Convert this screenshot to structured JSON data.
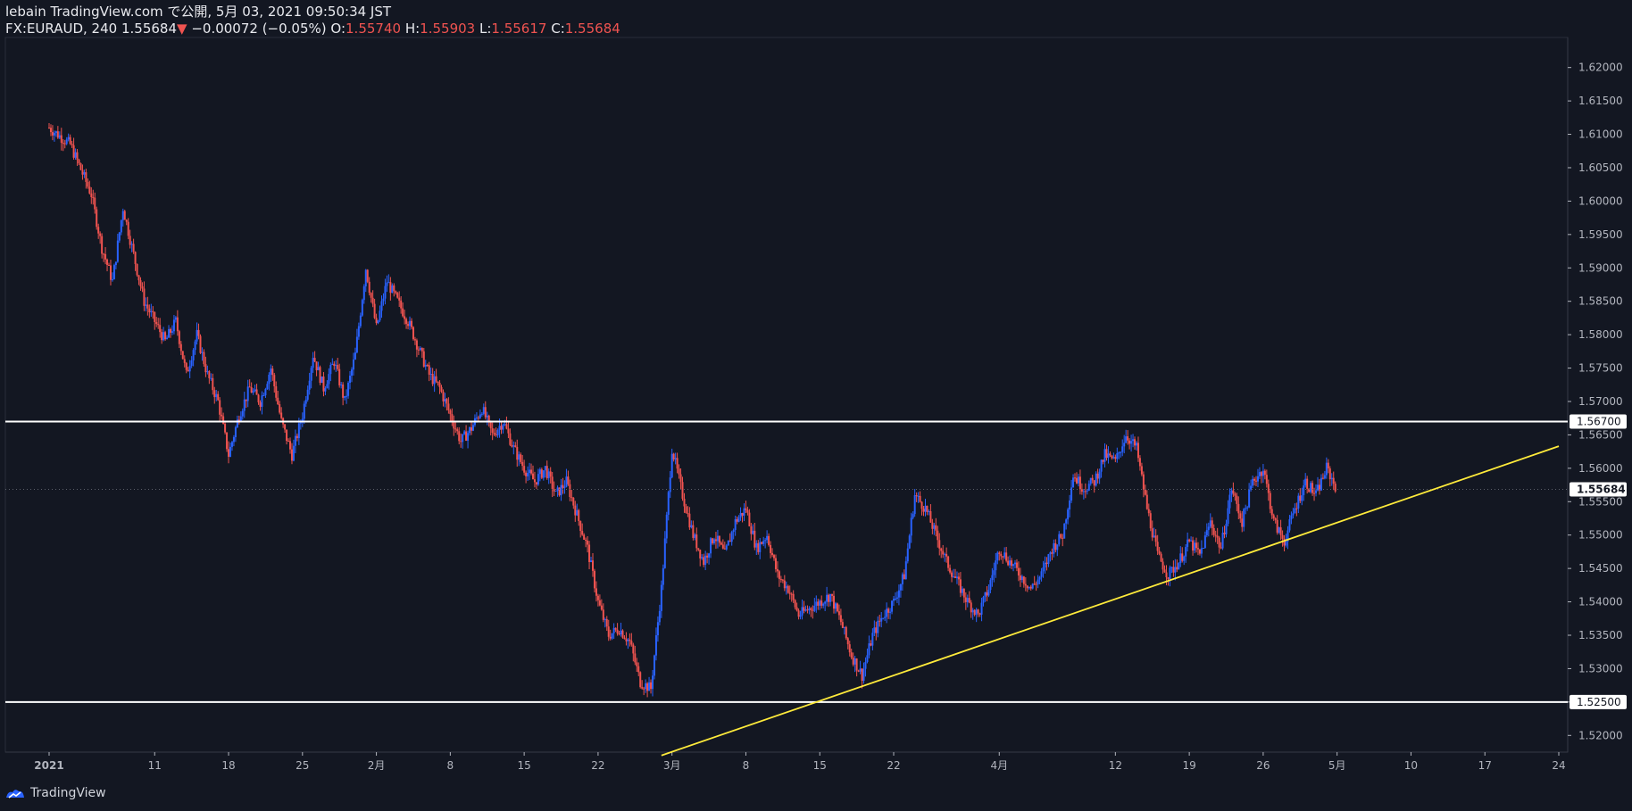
{
  "header": {
    "publisher_line": "lebain TradingView.com で公開, 5月 03, 2021 09:50:34 JST",
    "symbol": "FX:EURAUD, 240",
    "last": "1.55684",
    "change": "−0.00072 (−0.05%)",
    "o_label": "O:",
    "o_value": "1.55740",
    "h_label": "H:",
    "h_value": "1.55903",
    "l_label": "L:",
    "l_value": "1.55617",
    "c_label": "C:",
    "c_value": "1.55684"
  },
  "footer": {
    "brand": "TradingView"
  },
  "colors": {
    "background": "#131722",
    "up": "#2962ff",
    "down": "#ef5350",
    "horizontal_line": "#ffffff",
    "trendline": "#ffeb3b",
    "axis_text": "#b2b5be"
  },
  "chart_data": {
    "type": "candlestick",
    "symbol": "FX:EURAUD",
    "timeframe": "240",
    "ylim": [
      1.5175,
      1.6245
    ],
    "y_ticks": [
      "1.52000",
      "1.52500",
      "1.53000",
      "1.53500",
      "1.54000",
      "1.54500",
      "1.55000",
      "1.55500",
      "1.56000",
      "1.56500",
      "1.57000",
      "1.57500",
      "1.58000",
      "1.58500",
      "1.59000",
      "1.59500",
      "1.60000",
      "1.60500",
      "1.61000",
      "1.61500",
      "1.62000"
    ],
    "x_ticks": [
      {
        "label": "2021",
        "date": "2021-01-01"
      },
      {
        "label": "11",
        "date": "2021-01-11"
      },
      {
        "label": "18",
        "date": "2021-01-18"
      },
      {
        "label": "25",
        "date": "2021-01-25"
      },
      {
        "label": "2月",
        "date": "2021-02-01"
      },
      {
        "label": "8",
        "date": "2021-02-08"
      },
      {
        "label": "15",
        "date": "2021-02-15"
      },
      {
        "label": "22",
        "date": "2021-02-22"
      },
      {
        "label": "3月",
        "date": "2021-03-01"
      },
      {
        "label": "8",
        "date": "2021-03-08"
      },
      {
        "label": "15",
        "date": "2021-03-15"
      },
      {
        "label": "22",
        "date": "2021-03-22"
      },
      {
        "label": "4月",
        "date": "2021-04-01"
      },
      {
        "label": "12",
        "date": "2021-04-12"
      },
      {
        "label": "19",
        "date": "2021-04-19"
      },
      {
        "label": "26",
        "date": "2021-04-26"
      },
      {
        "label": "5月",
        "date": "2021-05-03"
      },
      {
        "label": "10",
        "date": "2021-05-10"
      },
      {
        "label": "17",
        "date": "2021-05-17"
      },
      {
        "label": "24",
        "date": "2021-05-24"
      }
    ],
    "horizontal_lines": [
      {
        "price": 1.567,
        "label": "1.56700"
      },
      {
        "price": 1.525,
        "label": "1.52500"
      }
    ],
    "last_price": {
      "price": 1.55684,
      "label": "1.55684"
    },
    "trendline": {
      "start": {
        "date": "2021-02-28",
        "price": 1.517
      },
      "end": {
        "date": "2021-05-24",
        "price": 1.5633
      }
    },
    "close_path": [
      [
        "2021-01-01",
        1.611
      ],
      [
        "2021-01-03",
        1.6085
      ],
      [
        "2021-01-05",
        1.601
      ],
      [
        "2021-01-06",
        1.593
      ],
      [
        "2021-01-07",
        1.588
      ],
      [
        "2021-01-08",
        1.599
      ],
      [
        "2021-01-09",
        1.592
      ],
      [
        "2021-01-10",
        1.585
      ],
      [
        "2021-01-12",
        1.579
      ],
      [
        "2021-01-13",
        1.582
      ],
      [
        "2021-01-14",
        1.574
      ],
      [
        "2021-01-15",
        1.58
      ],
      [
        "2021-01-16",
        1.574
      ],
      [
        "2021-01-17",
        1.57
      ],
      [
        "2021-01-18",
        1.562
      ],
      [
        "2021-01-19",
        1.568
      ],
      [
        "2021-01-20",
        1.572
      ],
      [
        "2021-01-21",
        1.57
      ],
      [
        "2021-01-22",
        1.575
      ],
      [
        "2021-01-23",
        1.567
      ],
      [
        "2021-01-24",
        1.562
      ],
      [
        "2021-01-25",
        1.568
      ],
      [
        "2021-01-26",
        1.577
      ],
      [
        "2021-01-27",
        1.572
      ],
      [
        "2021-01-28",
        1.576
      ],
      [
        "2021-01-29",
        1.57
      ],
      [
        "2021-01-30",
        1.577
      ],
      [
        "2021-01-31",
        1.59
      ],
      [
        "2021-02-01",
        1.581
      ],
      [
        "2021-02-02",
        1.588
      ],
      [
        "2021-02-03",
        1.585
      ],
      [
        "2021-02-04",
        1.582
      ],
      [
        "2021-02-05",
        1.578
      ],
      [
        "2021-02-06",
        1.574
      ],
      [
        "2021-02-07",
        1.572
      ],
      [
        "2021-02-08",
        1.568
      ],
      [
        "2021-02-09",
        1.564
      ],
      [
        "2021-02-10",
        1.566
      ],
      [
        "2021-02-11",
        1.569
      ],
      [
        "2021-02-12",
        1.565
      ],
      [
        "2021-02-13",
        1.567
      ],
      [
        "2021-02-14",
        1.563
      ],
      [
        "2021-02-15",
        1.56
      ],
      [
        "2021-02-16",
        1.558
      ],
      [
        "2021-02-17",
        1.56
      ],
      [
        "2021-02-18",
        1.556
      ],
      [
        "2021-02-19",
        1.558
      ],
      [
        "2021-02-20",
        1.553
      ],
      [
        "2021-02-21",
        1.548
      ],
      [
        "2021-02-22",
        1.54
      ],
      [
        "2021-02-23",
        1.535
      ],
      [
        "2021-02-24",
        1.536
      ],
      [
        "2021-02-25",
        1.534
      ],
      [
        "2021-02-26",
        1.528
      ],
      [
        "2021-02-27",
        1.527
      ],
      [
        "2021-02-28",
        1.542
      ],
      [
        "2021-03-01",
        1.563
      ],
      [
        "2021-03-02",
        1.556
      ],
      [
        "2021-03-03",
        1.55
      ],
      [
        "2021-03-04",
        1.546
      ],
      [
        "2021-03-05",
        1.55
      ],
      [
        "2021-03-06",
        1.547
      ],
      [
        "2021-03-07",
        1.552
      ],
      [
        "2021-03-08",
        1.554
      ],
      [
        "2021-03-09",
        1.548
      ],
      [
        "2021-03-10",
        1.55
      ],
      [
        "2021-03-11",
        1.544
      ],
      [
        "2021-03-12",
        1.542
      ],
      [
        "2021-03-13",
        1.538
      ],
      [
        "2021-03-14",
        1.539
      ],
      [
        "2021-03-15",
        1.54
      ],
      [
        "2021-03-16",
        1.541
      ],
      [
        "2021-03-17",
        1.537
      ],
      [
        "2021-03-18",
        1.532
      ],
      [
        "2021-03-19",
        1.529
      ],
      [
        "2021-03-20",
        1.535
      ],
      [
        "2021-03-21",
        1.538
      ],
      [
        "2021-03-22",
        1.54
      ],
      [
        "2021-03-23",
        1.544
      ],
      [
        "2021-03-24",
        1.556
      ],
      [
        "2021-03-25",
        1.554
      ],
      [
        "2021-03-26",
        1.55
      ],
      [
        "2021-03-27",
        1.546
      ],
      [
        "2021-03-28",
        1.543
      ],
      [
        "2021-03-29",
        1.54
      ],
      [
        "2021-03-30",
        1.538
      ],
      [
        "2021-03-31",
        1.542
      ],
      [
        "2021-04-01",
        1.548
      ],
      [
        "2021-04-02",
        1.546
      ],
      [
        "2021-04-03",
        1.544
      ],
      [
        "2021-04-04",
        1.542
      ],
      [
        "2021-04-05",
        1.544
      ],
      [
        "2021-04-06",
        1.548
      ],
      [
        "2021-04-07",
        1.55
      ],
      [
        "2021-04-08",
        1.559
      ],
      [
        "2021-04-09",
        1.557
      ],
      [
        "2021-04-10",
        1.558
      ],
      [
        "2021-04-11",
        1.562
      ],
      [
        "2021-04-12",
        1.561
      ],
      [
        "2021-04-13",
        1.565
      ],
      [
        "2021-04-14",
        1.563
      ],
      [
        "2021-04-15",
        1.554
      ],
      [
        "2021-04-16",
        1.547
      ],
      [
        "2021-04-17",
        1.544
      ],
      [
        "2021-04-18",
        1.546
      ],
      [
        "2021-04-19",
        1.549
      ],
      [
        "2021-04-20",
        1.547
      ],
      [
        "2021-04-21",
        1.552
      ],
      [
        "2021-04-22",
        1.548
      ],
      [
        "2021-04-23",
        1.557
      ],
      [
        "2021-04-24",
        1.552
      ],
      [
        "2021-04-25",
        1.558
      ],
      [
        "2021-04-26",
        1.56
      ],
      [
        "2021-04-27",
        1.552
      ],
      [
        "2021-04-28",
        1.549
      ],
      [
        "2021-04-29",
        1.554
      ],
      [
        "2021-04-30",
        1.558
      ],
      [
        "2021-05-01",
        1.556
      ],
      [
        "2021-05-02",
        1.56
      ],
      [
        "2021-05-03",
        1.5568
      ]
    ]
  }
}
